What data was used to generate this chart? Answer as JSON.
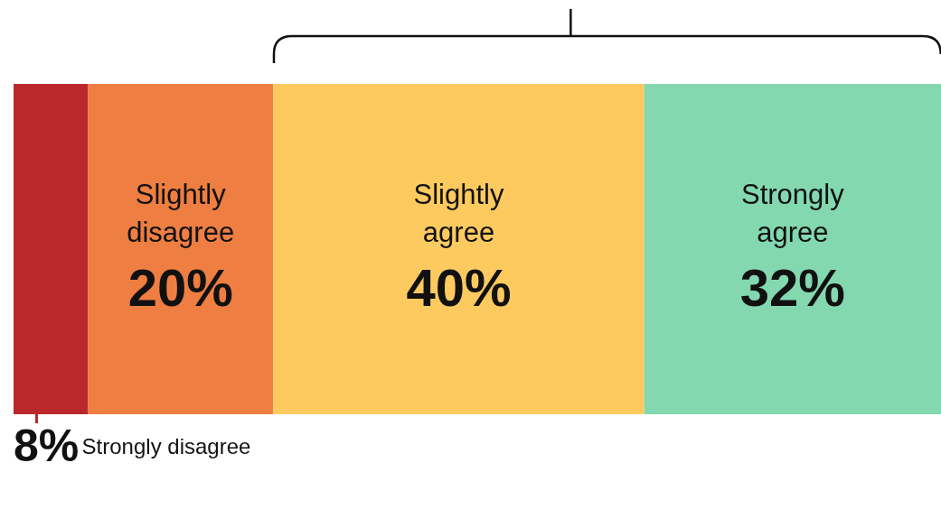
{
  "chart_data": {
    "type": "bar",
    "orientation": "horizontal",
    "stacked": true,
    "categories": [
      null
    ],
    "xlim": [
      0,
      100
    ],
    "tick_labels": false,
    "legend": false,
    "series": [
      {
        "name": "Strongly disagree",
        "color": "#bb282b",
        "values": [
          8
        ],
        "value_labels": [
          "8%"
        ]
      },
      {
        "name": "Slightly disagree",
        "color": "#ef7e42",
        "values": [
          20
        ],
        "value_labels": [
          "20%"
        ]
      },
      {
        "name": "Slightly agree",
        "color": "#fdca60",
        "values": [
          40
        ],
        "value_labels": [
          "40%"
        ]
      },
      {
        "name": "Strongly agree",
        "color": "#83d8b0",
        "values": [
          32
        ],
        "value_labels": [
          "32%"
        ]
      }
    ]
  }
}
